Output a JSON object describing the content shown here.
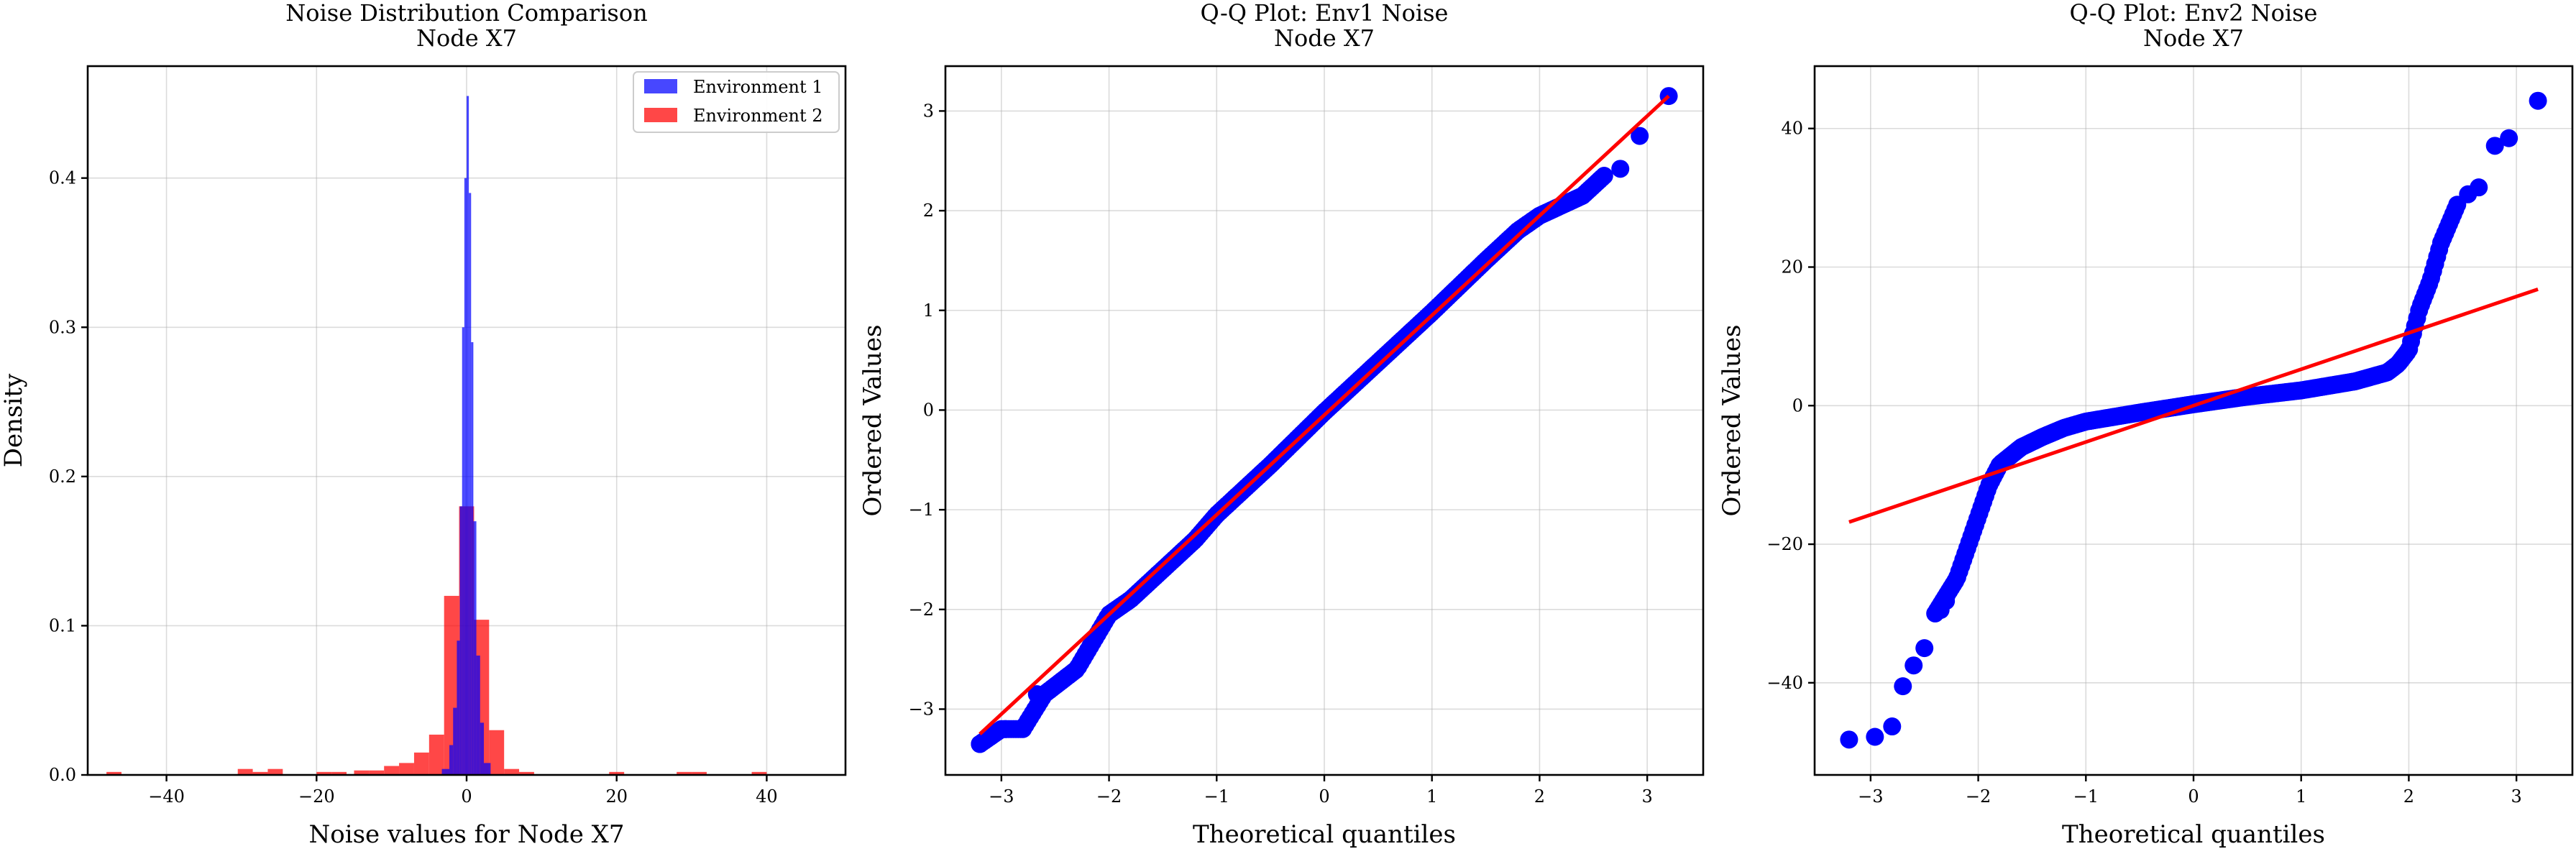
{
  "figure_colors": {
    "env1": "#0000ff",
    "env2": "#ff0000",
    "fit_line": "#ff0000",
    "grid": "#b0b0b0"
  },
  "chart_data": [
    {
      "id": "hist",
      "type": "bar",
      "title": "Noise Distribution Comparison",
      "subtitle": "Node X7",
      "xlabel": "Noise values for Node X7",
      "ylabel": "Density",
      "xlim": [
        -50.5,
        50.5
      ],
      "ylim": [
        0,
        0.475
      ],
      "xticks": [
        -40,
        -20,
        0,
        20,
        40
      ],
      "yticks": [
        0.0,
        0.1,
        0.2,
        0.3,
        0.4
      ],
      "grid": true,
      "legend_position": "top-right",
      "series": [
        {
          "name": "Environment 1",
          "color": "#0000ff",
          "bins": [
            [
              -3.3,
              -2.3,
              0.004
            ],
            [
              -2.3,
              -1.8,
              0.02
            ],
            [
              -1.8,
              -1.3,
              0.045
            ],
            [
              -1.3,
              -0.9,
              0.09
            ],
            [
              -0.9,
              -0.6,
              0.18
            ],
            [
              -0.6,
              -0.3,
              0.3
            ],
            [
              -0.3,
              0.0,
              0.4
            ],
            [
              0.0,
              0.3,
              0.455
            ],
            [
              0.3,
              0.6,
              0.39
            ],
            [
              0.6,
              0.9,
              0.29
            ],
            [
              0.9,
              1.3,
              0.17
            ],
            [
              1.3,
              1.8,
              0.08
            ],
            [
              1.8,
              2.3,
              0.035
            ],
            [
              2.3,
              3.2,
              0.008
            ]
          ]
        },
        {
          "name": "Environment 2",
          "color": "#ff0000",
          "bins": [
            [
              -48.0,
              -46.0,
              0.002
            ],
            [
              -30.5,
              -28.5,
              0.004
            ],
            [
              -28.5,
              -26.5,
              0.002
            ],
            [
              -26.5,
              -24.5,
              0.004
            ],
            [
              -20.0,
              -18.0,
              0.002
            ],
            [
              -18.0,
              -16.0,
              0.002
            ],
            [
              -15.0,
              -13.0,
              0.003
            ],
            [
              -13.0,
              -11.0,
              0.003
            ],
            [
              -11.0,
              -9.0,
              0.006
            ],
            [
              -9.0,
              -7.0,
              0.008
            ],
            [
              -7.0,
              -5.0,
              0.015
            ],
            [
              -5.0,
              -3.0,
              0.027
            ],
            [
              -3.0,
              -1.0,
              0.12
            ],
            [
              -1.0,
              1.0,
              0.18
            ],
            [
              1.0,
              3.0,
              0.104
            ],
            [
              3.0,
              5.0,
              0.03
            ],
            [
              5.0,
              7.0,
              0.004
            ],
            [
              7.0,
              9.0,
              0.002
            ],
            [
              19.0,
              21.0,
              0.002
            ],
            [
              28.0,
              30.0,
              0.002
            ],
            [
              30.0,
              32.0,
              0.002
            ],
            [
              38.0,
              40.0,
              0.002
            ]
          ]
        }
      ]
    },
    {
      "id": "qq1",
      "type": "scatter",
      "title": "Q-Q Plot: Env1 Noise",
      "subtitle": "Node X7",
      "xlabel": "Theoretical quantiles",
      "ylabel": "Ordered Values",
      "xlim": [
        -3.52,
        3.52
      ],
      "ylim": [
        -3.66,
        3.45
      ],
      "xticks": [
        -3,
        -2,
        -1,
        0,
        1,
        2,
        3
      ],
      "yticks": [
        -3,
        -2,
        -1,
        0,
        1,
        2,
        3
      ],
      "grid": true,
      "color": "#0000ff",
      "line_color": "#ff0000",
      "fit_line": {
        "x": [
          -3.2,
          3.2
        ],
        "y": [
          -3.25,
          3.15
        ]
      },
      "shape": {
        "x": [
          -3.2,
          -3.0,
          -2.8,
          -2.6,
          -2.3,
          -2.0,
          -1.8,
          -1.5,
          -1.2,
          -1.0,
          -0.5,
          0.0,
          0.5,
          1.0,
          1.5,
          1.8,
          2.0,
          2.2,
          2.4,
          2.6
        ],
        "y": [
          -3.35,
          -3.2,
          -3.2,
          -2.85,
          -2.6,
          -2.05,
          -1.9,
          -1.6,
          -1.3,
          -1.05,
          -0.55,
          -0.02,
          0.48,
          0.98,
          1.5,
          1.8,
          1.95,
          2.05,
          2.15,
          2.35
        ]
      },
      "points": [
        [
          -3.2,
          -3.35
        ],
        [
          -2.96,
          -3.2
        ],
        [
          -2.8,
          -3.2
        ],
        [
          -2.67,
          -2.85
        ],
        [
          2.75,
          2.42
        ],
        [
          2.93,
          2.75
        ],
        [
          3.2,
          3.15
        ]
      ]
    },
    {
      "id": "qq2",
      "type": "scatter",
      "title": "Q-Q Plot: Env2 Noise",
      "subtitle": "Node X7",
      "xlabel": "Theoretical quantiles",
      "ylabel": "Ordered Values",
      "xlim": [
        -3.52,
        3.52
      ],
      "ylim": [
        -53.3,
        49.0
      ],
      "xticks": [
        -3,
        -2,
        -1,
        0,
        1,
        2,
        3
      ],
      "yticks": [
        -40,
        -20,
        0,
        20,
        40
      ],
      "grid": true,
      "color": "#0000ff",
      "line_color": "#ff0000",
      "fit_line": {
        "x": [
          -3.2,
          3.2
        ],
        "y": [
          -16.8,
          16.8
        ]
      },
      "shape": {
        "x": [
          -2.4,
          -2.2,
          -2.1,
          -2.0,
          -1.9,
          -1.8,
          -1.6,
          -1.4,
          -1.2,
          -1.0,
          -0.5,
          0.0,
          0.5,
          1.0,
          1.5,
          1.8,
          1.9,
          2.0,
          2.05,
          2.1,
          2.2,
          2.3,
          2.45
        ],
        "y": [
          -30.0,
          -25.0,
          -20.5,
          -16.0,
          -11.5,
          -8.5,
          -6.0,
          -4.5,
          -3.2,
          -2.3,
          -1.0,
          0.2,
          1.3,
          2.2,
          3.5,
          4.8,
          6.0,
          8.0,
          11.0,
          14.0,
          18.0,
          23.5,
          29.0
        ]
      },
      "points": [
        [
          -3.2,
          -48.2
        ],
        [
          -2.96,
          -47.8
        ],
        [
          -2.8,
          -46.3
        ],
        [
          -2.7,
          -40.5
        ],
        [
          -2.6,
          -37.5
        ],
        [
          -2.5,
          -35.0
        ],
        [
          -2.35,
          -29.5
        ],
        [
          -2.3,
          -28.2
        ],
        [
          2.55,
          30.5
        ],
        [
          2.65,
          31.5
        ],
        [
          2.8,
          37.5
        ],
        [
          2.93,
          38.6
        ],
        [
          3.2,
          44.0
        ]
      ]
    }
  ]
}
